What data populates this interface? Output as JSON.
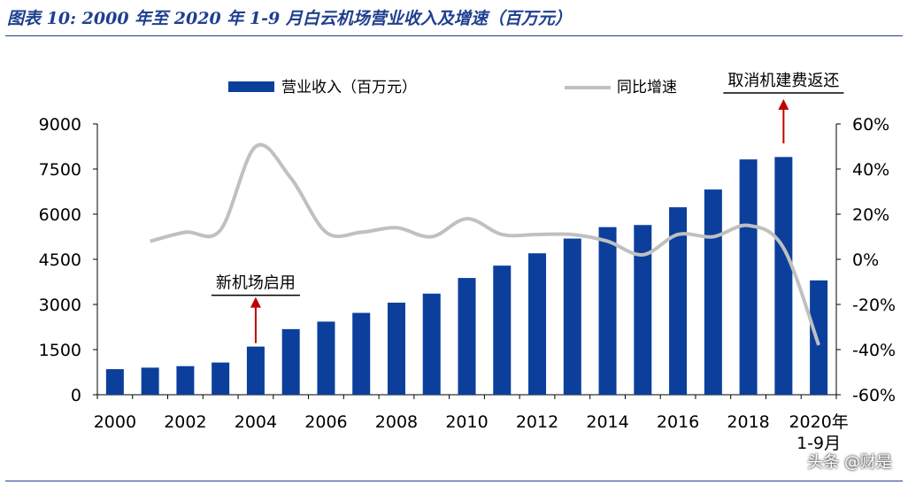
{
  "figure_title": "图表 10:  2000 年至 2020 年 1-9 月白云机场营业收入及增速（百万元）",
  "watermark": "头条 @财是",
  "colors": {
    "bar": "#0b3f9b",
    "line": "#c0c0c0",
    "arrow": "#c00000",
    "title": "#1f3f8f"
  },
  "chart_data": {
    "type": "bar",
    "title": "",
    "categories": [
      "2000",
      "2001",
      "2002",
      "2003",
      "2004",
      "2005",
      "2006",
      "2007",
      "2008",
      "2009",
      "2010",
      "2011",
      "2012",
      "2013",
      "2014",
      "2015",
      "2016",
      "2017",
      "2018",
      "2019",
      "2020年1-9月"
    ],
    "x_tick_labels": [
      "2000",
      "2002",
      "2004",
      "2006",
      "2008",
      "2010",
      "2012",
      "2014",
      "2016",
      "2018",
      "2020年"
    ],
    "x_tick_sublabel": "1-9月",
    "series": [
      {
        "name": "营业收入（百万元）",
        "type": "bar",
        "axis": "left",
        "values": [
          850,
          900,
          950,
          1070,
          1600,
          2180,
          2430,
          2720,
          3060,
          3360,
          3880,
          4290,
          4700,
          5190,
          5570,
          5640,
          6230,
          6820,
          7820,
          7900,
          3800
        ]
      },
      {
        "name": "同比增速",
        "type": "line",
        "axis": "right",
        "values": [
          null,
          8,
          12,
          13,
          50,
          36,
          12,
          12,
          14,
          10,
          18,
          11,
          11,
          11,
          8,
          2,
          11,
          10,
          15,
          5,
          -38
        ]
      }
    ],
    "left_axis": {
      "ylim": [
        0,
        9000
      ],
      "ticks": [
        "0",
        "1500",
        "3000",
        "4500",
        "6000",
        "7500",
        "9000"
      ]
    },
    "right_axis": {
      "ylim": [
        -60,
        60
      ],
      "ticks": [
        "-60%",
        "-40%",
        "-20%",
        "0%",
        "20%",
        "40%",
        "60%"
      ]
    },
    "legend_position": "top",
    "annotations": [
      {
        "text": "新机场启用",
        "category": "2004"
      },
      {
        "text": "取消机建费返还",
        "category": "2019"
      }
    ]
  }
}
